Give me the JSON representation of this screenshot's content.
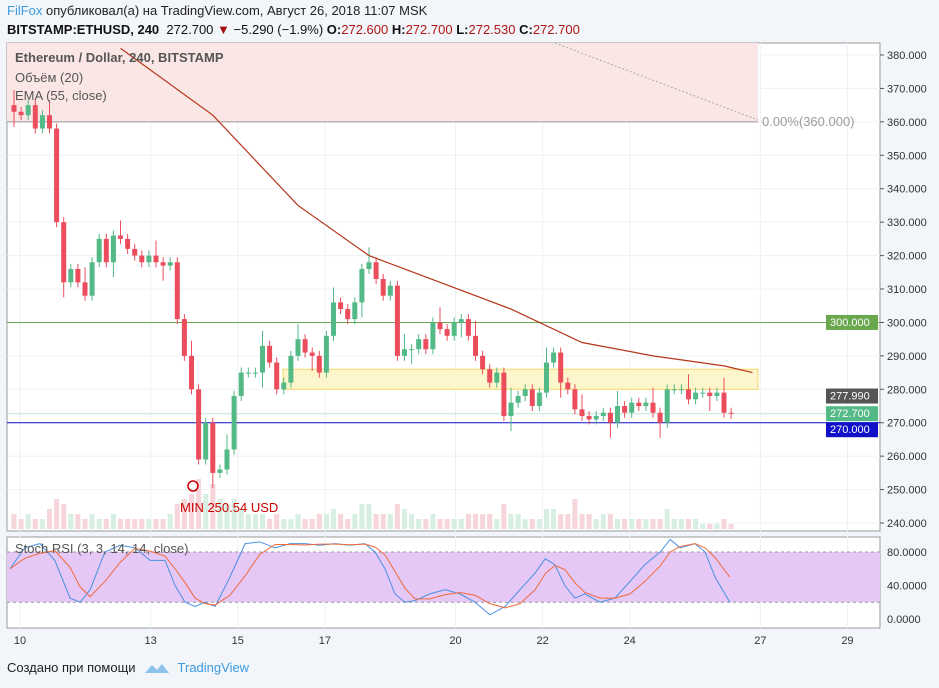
{
  "header": {
    "author": "FilFox",
    "published": "опубликовал(а) на TradingView.com, Август 26, 2018 11:07 MSK",
    "symbol": "BITSTAMP:ETHUSD, 240",
    "last": "272.700",
    "change": "−5.290 (−1.9%)",
    "o_label": "O:",
    "o": "272.600",
    "h_label": "H:",
    "h": "272.700",
    "l_label": "L:",
    "l": "272.530",
    "c_label": "C:",
    "c": "272.700"
  },
  "legend": {
    "title": "Ethereum / Dollar, 240, BITSTAMP",
    "volume": "Объём (20)",
    "ema": "EMA (55, close)",
    "stoch": "Stoch RSI (3, 3, 14, 14, close)"
  },
  "annotations": {
    "fib": "0.00%(360.000)",
    "min": "MIN 250.54 USD"
  },
  "footer": {
    "created": "Создано при помощи",
    "brand": "TradingView"
  },
  "colors": {
    "up": "#53b987",
    "down": "#eb4d5c",
    "ema": "#b5361a",
    "fib_zone": "#fbe6e6",
    "support_zone": "#fdf6cc",
    "line300": "#6aa84f",
    "line270": "#1010c8",
    "stoch_band": "#e5c8f6",
    "stoch_k": "#4a90e2",
    "stoch_d": "#f06a3a"
  },
  "chart_data": {
    "type": "candlestick",
    "interval_hours": 4,
    "first_candle": "Aug 9 20:00",
    "closes": [
      363,
      362,
      365,
      358,
      362,
      358,
      330,
      312,
      316,
      312,
      308,
      318,
      325,
      318,
      326,
      325,
      322,
      320,
      318,
      320,
      318,
      317,
      318,
      301,
      290,
      280,
      259,
      270,
      255,
      256,
      262,
      278,
      285,
      285,
      285,
      293,
      288,
      280,
      282,
      290,
      295,
      291,
      290,
      285,
      296,
      306,
      304,
      301,
      306,
      316,
      318,
      313,
      308,
      311,
      290,
      292,
      292,
      295,
      292,
      300,
      298,
      296,
      300,
      301,
      296,
      290,
      286,
      282,
      285,
      272,
      276,
      278,
      280,
      275,
      279,
      288,
      291,
      282,
      280,
      274,
      272,
      271,
      272,
      273,
      270,
      275,
      273,
      276,
      275,
      276,
      273,
      270,
      280,
      280,
      280,
      277,
      279,
      279,
      278,
      279,
      273,
      272.7
    ],
    "first_open": 365,
    "volume": [
      3,
      2,
      3,
      2,
      2,
      4,
      6,
      5,
      3,
      3,
      2,
      3,
      2,
      2,
      3,
      2,
      2,
      2,
      2,
      2,
      2,
      2,
      3,
      5,
      6,
      7,
      10,
      7,
      9,
      6,
      5,
      6,
      4,
      3,
      3,
      3,
      2,
      3,
      2,
      2,
      3,
      2,
      2,
      3,
      3,
      4,
      3,
      2,
      3,
      5,
      5,
      3,
      3,
      3,
      5,
      4,
      3,
      2,
      2,
      3,
      2,
      2,
      2,
      2,
      3,
      3,
      3,
      3,
      2,
      5,
      3,
      3,
      2,
      2,
      2,
      4,
      4,
      3,
      3,
      6,
      3,
      3,
      2,
      3,
      3,
      2,
      2,
      2,
      2,
      2,
      2,
      2,
      4,
      2,
      2,
      2,
      2,
      1,
      1,
      1,
      2,
      1
    ],
    "ema55": [
      [
        15,
        382
      ],
      [
        28,
        362
      ],
      [
        40,
        335
      ],
      [
        50,
        320
      ],
      [
        60,
        312
      ],
      [
        70,
        304
      ],
      [
        80,
        294
      ],
      [
        90,
        290
      ],
      [
        100,
        287
      ],
      [
        104,
        285
      ]
    ],
    "stoch_k": [
      [
        9.77,
        60
      ],
      [
        10.11,
        85
      ],
      [
        10.46,
        90
      ],
      [
        10.8,
        70
      ],
      [
        11.15,
        25
      ],
      [
        11.38,
        20
      ],
      [
        11.61,
        35
      ],
      [
        11.95,
        80
      ],
      [
        12.3,
        88
      ],
      [
        12.64,
        85
      ],
      [
        12.99,
        70
      ],
      [
        13.33,
        70
      ],
      [
        13.56,
        40
      ],
      [
        13.79,
        20
      ],
      [
        14.02,
        15
      ],
      [
        14.25,
        20
      ],
      [
        14.48,
        15
      ],
      [
        14.82,
        50
      ],
      [
        15.17,
        90
      ],
      [
        15.51,
        92
      ],
      [
        15.86,
        85
      ],
      [
        16.2,
        90
      ],
      [
        16.54,
        90
      ],
      [
        16.89,
        88
      ],
      [
        17.23,
        90
      ],
      [
        17.58,
        88
      ],
      [
        17.92,
        90
      ],
      [
        18.15,
        80
      ],
      [
        18.38,
        60
      ],
      [
        18.61,
        30
      ],
      [
        18.84,
        20
      ],
      [
        19.07,
        22
      ],
      [
        19.41,
        30
      ],
      [
        19.76,
        35
      ],
      [
        20.1,
        30
      ],
      [
        20.45,
        20
      ],
      [
        20.79,
        5
      ],
      [
        21.14,
        15
      ],
      [
        21.48,
        35
      ],
      [
        21.83,
        55
      ],
      [
        22.06,
        72
      ],
      [
        22.28,
        65
      ],
      [
        22.51,
        40
      ],
      [
        22.74,
        25
      ],
      [
        22.97,
        30
      ],
      [
        23.32,
        20
      ],
      [
        23.66,
        25
      ],
      [
        24.01,
        45
      ],
      [
        24.35,
        65
      ],
      [
        24.7,
        80
      ],
      [
        24.93,
        95
      ],
      [
        25.16,
        85
      ],
      [
        25.5,
        90
      ],
      [
        25.73,
        80
      ],
      [
        25.96,
        50
      ],
      [
        26.3,
        20
      ]
    ],
    "price_ticks": [
      380,
      370,
      360,
      350,
      340,
      330,
      320,
      310,
      300,
      290,
      280,
      270,
      260,
      250,
      240
    ],
    "stoch_ticks": [
      "80.0000",
      "40.0000",
      "0.0000"
    ],
    "x_ticks": [
      "10",
      "13",
      "15",
      "17",
      "20",
      "22",
      "24",
      "27",
      "29"
    ],
    "x_tick_days": [
      10,
      13,
      15,
      17,
      20,
      22,
      24,
      27,
      29
    ],
    "price_labels": [
      {
        "text": "300.000",
        "value": 300,
        "color": "#6aa84f"
      },
      {
        "text": "277.990",
        "value": 277.99,
        "color": "#555555"
      },
      {
        "text": "272.700",
        "value": 272.7,
        "color": "#53b987"
      },
      {
        "text": "270.000",
        "value": 270,
        "color": "#1010c8"
      }
    ],
    "fib_level": 360,
    "support_zone": [
      280,
      286
    ],
    "min_price": 250.54,
    "stoch_band": [
      20,
      80
    ]
  }
}
